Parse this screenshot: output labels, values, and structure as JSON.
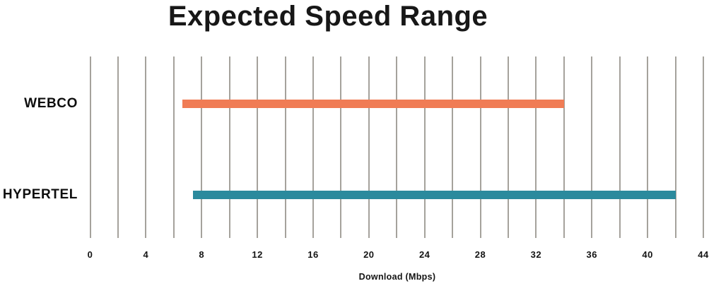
{
  "chart_data": {
    "type": "bar",
    "subtype": "horizontal-range-bar",
    "title": "Expected Speed Range",
    "xlabel": "Download (Mbps)",
    "categories": [
      "WEBCO",
      "HYPERTEL"
    ],
    "series": [
      {
        "name": "WEBCO",
        "low": 6.6,
        "high": 34,
        "color": "#f07c55"
      },
      {
        "name": "HYPERTEL",
        "low": 7.4,
        "high": 42,
        "color": "#2b8a9d"
      }
    ],
    "xlim": [
      0,
      44
    ],
    "x_ticks": [
      0,
      4,
      8,
      12,
      16,
      20,
      24,
      28,
      32,
      36,
      40,
      44
    ],
    "gridline_interval": 2,
    "grid": "vertical-gridlines-on",
    "legend": "none",
    "gridline_color": "#a5a29c",
    "text_color": "#141414"
  }
}
